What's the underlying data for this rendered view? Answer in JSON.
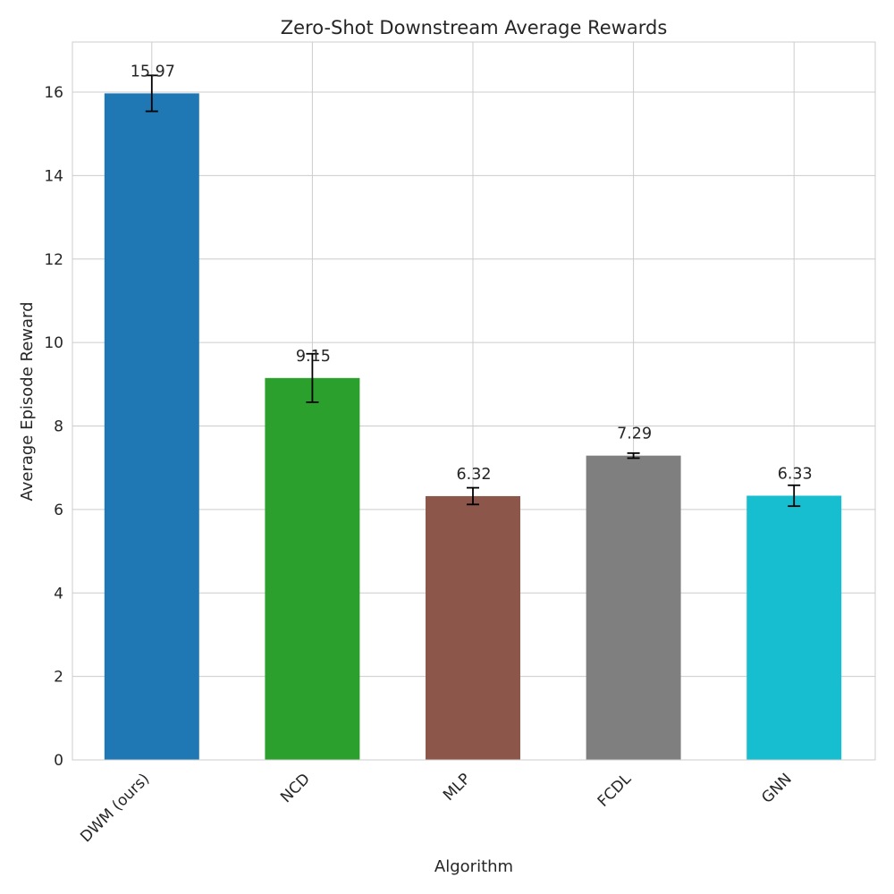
{
  "chart_data": {
    "type": "bar",
    "title": "Zero-Shot Downstream Average Rewards",
    "xlabel": "Algorithm",
    "ylabel": "Average Episode Reward",
    "categories": [
      "DWM (ours)",
      "NCD",
      "MLP",
      "FCDL",
      "GNN"
    ],
    "values": [
      15.97,
      9.15,
      6.32,
      7.29,
      6.33
    ],
    "errors": [
      0.43,
      0.58,
      0.2,
      0.06,
      0.25
    ],
    "data_labels": [
      "15.97",
      "9.15",
      "6.32",
      "7.29",
      "6.33"
    ],
    "colors": [
      "#1f77b4",
      "#2ca02c",
      "#8c564b",
      "#7f7f7f",
      "#17becf"
    ],
    "ylim": [
      0,
      17.2
    ],
    "yticks": [
      0,
      2,
      4,
      6,
      8,
      10,
      12,
      14,
      16
    ],
    "ytick_labels": [
      "0",
      "2",
      "4",
      "6",
      "8",
      "10",
      "12",
      "14",
      "16"
    ],
    "grid": true,
    "legend": "none"
  }
}
